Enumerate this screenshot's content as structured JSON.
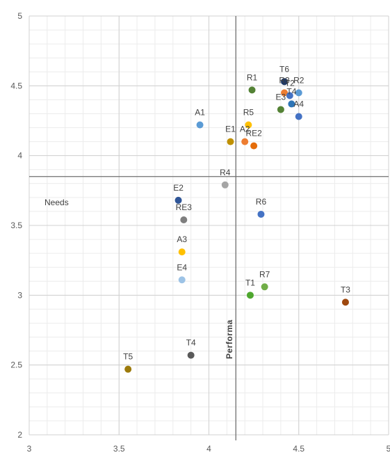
{
  "chart_data": {
    "type": "scatter",
    "title": "",
    "xlabel": "",
    "ylabel": "",
    "xlim": [
      3,
      5
    ],
    "ylim": [
      2,
      5
    ],
    "x_ticks": [
      "3",
      "3.5",
      "4",
      "4.5",
      "5"
    ],
    "y_ticks": [
      "2",
      "2.5",
      "3",
      "3.5",
      "4",
      "4.5",
      "5"
    ],
    "grid": true,
    "legend": "none",
    "reference_lines": {
      "x": 4.15,
      "y": 3.85
    },
    "annotations": {
      "quadrant_label": "Needs",
      "vertical_label": "Performa"
    },
    "points": [
      {
        "label": "T6",
        "x": 4.42,
        "y": 4.53,
        "color": "#1f3864"
      },
      {
        "label": "R3",
        "x": 4.42,
        "y": 4.45,
        "color": "#ed7d31"
      },
      {
        "label": "R2",
        "x": 4.5,
        "y": 4.45,
        "color": "#5b9bd5"
      },
      {
        "label": "T2",
        "x": 4.45,
        "y": 4.43,
        "color": "#4472c4"
      },
      {
        "label": "R1",
        "x": 4.24,
        "y": 4.47,
        "color": "#548235"
      },
      {
        "label": "T4",
        "x": 4.46,
        "y": 4.37,
        "color": "#2e75b6"
      },
      {
        "label": "E3",
        "x": 4.4,
        "y": 4.33,
        "color": "#548235"
      },
      {
        "label": "A4",
        "x": 4.5,
        "y": 4.28,
        "color": "#4472c4"
      },
      {
        "label": "A1",
        "x": 3.95,
        "y": 4.22,
        "color": "#5b9bd5"
      },
      {
        "label": "R5",
        "x": 4.22,
        "y": 4.22,
        "color": "#ffc000"
      },
      {
        "label": "E1",
        "x": 4.12,
        "y": 4.1,
        "color": "#bf9000"
      },
      {
        "label": "A2",
        "x": 4.2,
        "y": 4.1,
        "color": "#ed7d31"
      },
      {
        "label": "RE2",
        "x": 4.25,
        "y": 4.07,
        "color": "#e46c0a"
      },
      {
        "label": "R4",
        "x": 4.09,
        "y": 3.79,
        "color": "#a5a5a5"
      },
      {
        "label": "E2",
        "x": 3.83,
        "y": 3.68,
        "color": "#2f5597"
      },
      {
        "label": "RE3",
        "x": 3.86,
        "y": 3.54,
        "color": "#7f7f7f"
      },
      {
        "label": "R6",
        "x": 4.29,
        "y": 3.58,
        "color": "#4472c4"
      },
      {
        "label": "A3",
        "x": 3.85,
        "y": 3.31,
        "color": "#ffc000"
      },
      {
        "label": "E4",
        "x": 3.85,
        "y": 3.11,
        "color": "#9dc3e6"
      },
      {
        "label": "R7",
        "x": 4.31,
        "y": 3.06,
        "color": "#70ad47"
      },
      {
        "label": "T1",
        "x": 4.23,
        "y": 3.0,
        "color": "#4ea72e"
      },
      {
        "label": "T3",
        "x": 4.76,
        "y": 2.95,
        "color": "#9e480e"
      },
      {
        "label": "T4",
        "x": 3.9,
        "y": 2.57,
        "color": "#595959"
      },
      {
        "label": "T5",
        "x": 3.55,
        "y": 2.47,
        "color": "#9c7a0b"
      }
    ]
  }
}
